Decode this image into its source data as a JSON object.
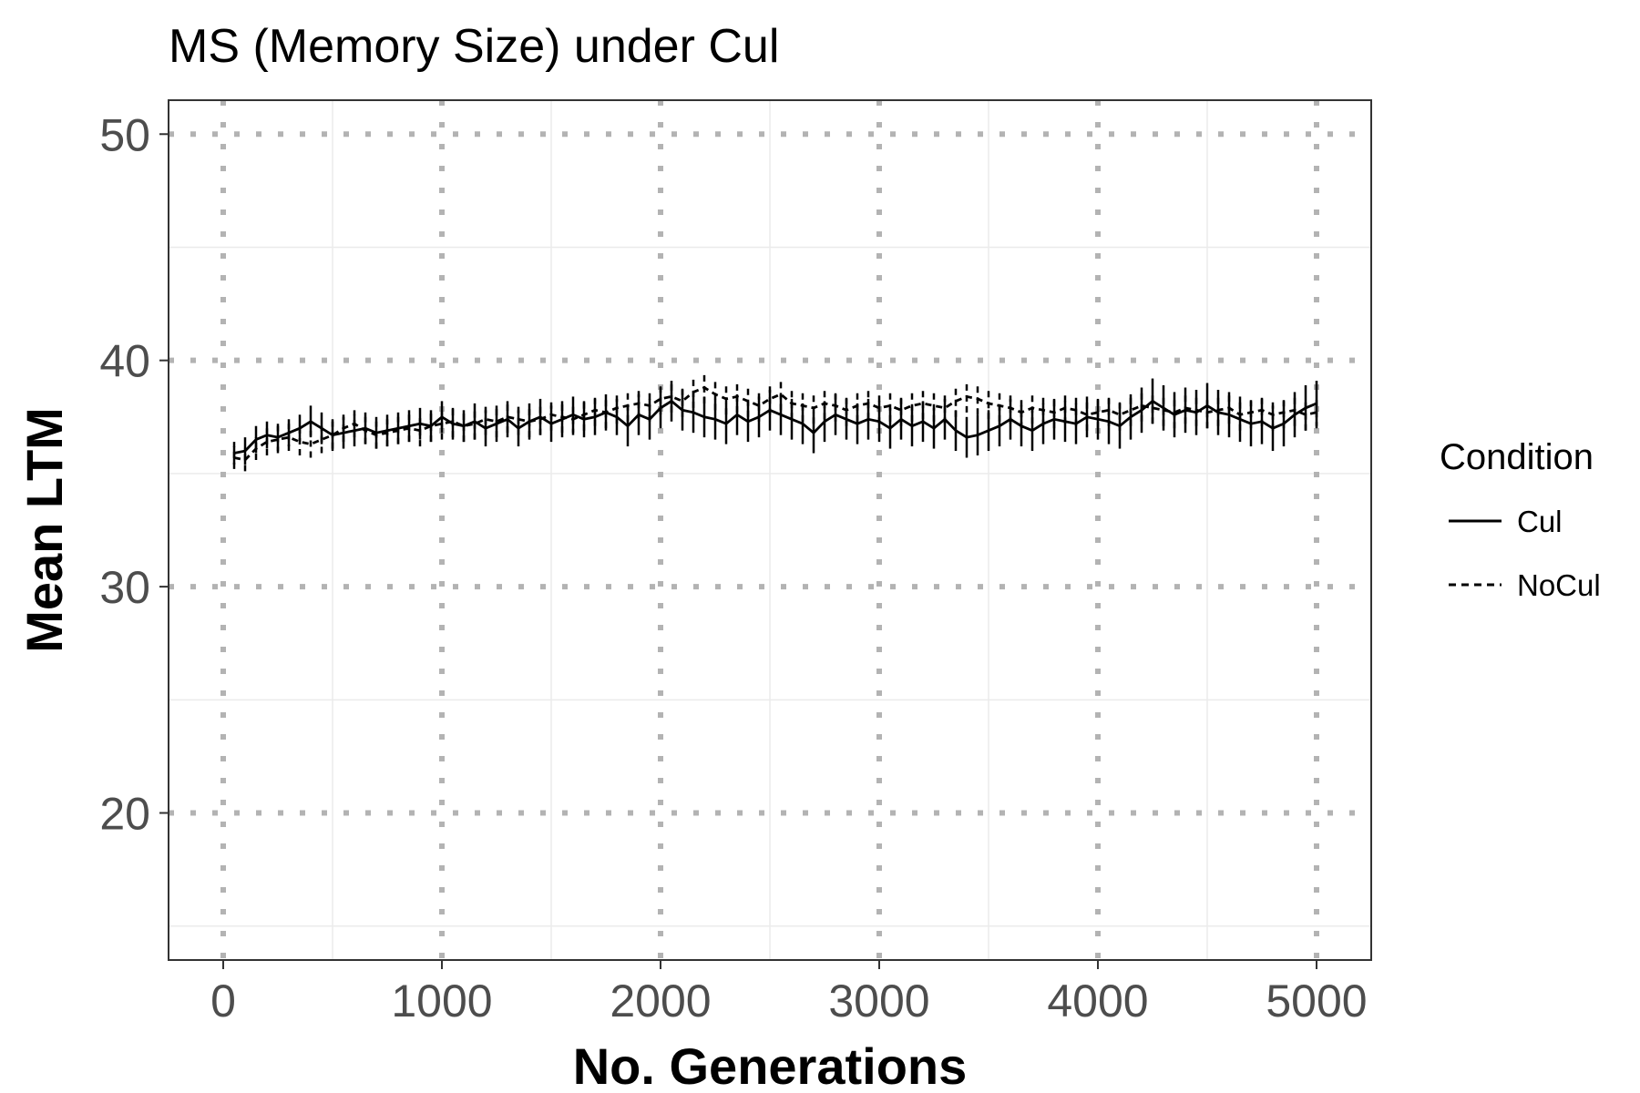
{
  "chart_data": {
    "type": "line",
    "title": "MS (Memory Size) under Cul",
    "xlabel": "No. Generations",
    "ylabel": "Mean LTM",
    "xlim": [
      -250,
      5250
    ],
    "ylim": [
      13.5,
      51.5
    ],
    "x_ticks": [
      0,
      1000,
      2000,
      3000,
      4000,
      5000
    ],
    "y_ticks": [
      20,
      30,
      40,
      50
    ],
    "grid": true,
    "legend": {
      "title": "Condition",
      "placement": "right"
    },
    "x": [
      50,
      100,
      150,
      200,
      250,
      300,
      350,
      400,
      450,
      500,
      550,
      600,
      650,
      700,
      750,
      800,
      850,
      900,
      950,
      1000,
      1050,
      1100,
      1150,
      1200,
      1250,
      1300,
      1350,
      1400,
      1450,
      1500,
      1550,
      1600,
      1650,
      1700,
      1750,
      1800,
      1850,
      1900,
      1950,
      2000,
      2050,
      2100,
      2150,
      2200,
      2250,
      2300,
      2350,
      2400,
      2450,
      2500,
      2550,
      2600,
      2650,
      2700,
      2750,
      2800,
      2850,
      2900,
      2950,
      3000,
      3050,
      3100,
      3150,
      3200,
      3250,
      3300,
      3350,
      3400,
      3450,
      3500,
      3550,
      3600,
      3650,
      3700,
      3750,
      3800,
      3850,
      3900,
      3950,
      4000,
      4050,
      4100,
      4150,
      4200,
      4250,
      4300,
      4350,
      4400,
      4450,
      4500,
      4550,
      4600,
      4650,
      4700,
      4750,
      4800,
      4850,
      4900,
      4950,
      5000
    ],
    "series": [
      {
        "name": "Cul",
        "line_style": "solid",
        "values": [
          35.9,
          36.0,
          36.5,
          36.7,
          36.6,
          36.8,
          37.0,
          37.3,
          37.0,
          36.7,
          36.8,
          36.9,
          37.0,
          36.8,
          36.9,
          37.0,
          37.1,
          37.2,
          37.1,
          37.5,
          37.2,
          37.1,
          37.3,
          37.0,
          37.2,
          37.4,
          37.0,
          37.3,
          37.5,
          37.2,
          37.4,
          37.6,
          37.4,
          37.5,
          37.7,
          37.5,
          37.1,
          37.6,
          37.4,
          37.9,
          38.2,
          37.8,
          37.7,
          37.5,
          37.4,
          37.2,
          37.6,
          37.3,
          37.5,
          37.8,
          37.6,
          37.4,
          37.2,
          36.8,
          37.3,
          37.6,
          37.4,
          37.2,
          37.4,
          37.3,
          37.0,
          37.4,
          37.1,
          37.3,
          37.0,
          37.4,
          36.9,
          36.6,
          36.7,
          36.9,
          37.1,
          37.4,
          37.1,
          36.9,
          37.2,
          37.4,
          37.3,
          37.2,
          37.5,
          37.4,
          37.3,
          37.1,
          37.5,
          37.8,
          38.2,
          37.9,
          37.6,
          37.8,
          37.7,
          38.0,
          37.7,
          37.6,
          37.4,
          37.2,
          37.3,
          37.0,
          37.2,
          37.6,
          37.9,
          38.1
        ],
        "error": [
          0.5,
          0.6,
          0.6,
          0.6,
          0.6,
          0.6,
          0.6,
          0.7,
          0.7,
          0.7,
          0.7,
          0.7,
          0.7,
          0.7,
          0.7,
          0.7,
          0.7,
          0.7,
          0.7,
          0.7,
          0.7,
          0.7,
          0.8,
          0.8,
          0.8,
          0.8,
          0.8,
          0.8,
          0.8,
          0.8,
          0.8,
          0.8,
          0.8,
          0.8,
          0.8,
          0.8,
          0.9,
          0.9,
          0.9,
          0.9,
          0.9,
          0.9,
          0.9,
          0.9,
          0.9,
          0.9,
          0.9,
          0.9,
          0.9,
          0.9,
          0.9,
          0.9,
          0.9,
          0.9,
          0.9,
          0.9,
          0.9,
          0.9,
          0.9,
          0.9,
          0.9,
          0.9,
          0.9,
          0.9,
          0.9,
          0.9,
          0.9,
          0.9,
          0.9,
          0.9,
          0.9,
          0.9,
          0.9,
          0.9,
          0.9,
          0.9,
          0.9,
          0.9,
          0.9,
          0.9,
          1.0,
          1.0,
          1.0,
          1.0,
          1.0,
          1.0,
          1.0,
          1.0,
          1.0,
          1.0,
          1.0,
          1.0,
          1.0,
          1.0,
          1.0,
          1.0,
          1.0,
          1.0,
          1.0,
          1.0
        ]
      },
      {
        "name": "NoCul",
        "line_style": "dashed",
        "values": [
          35.7,
          35.6,
          36.1,
          36.4,
          36.5,
          36.6,
          36.4,
          36.3,
          36.5,
          36.7,
          37.0,
          37.2,
          36.9,
          36.7,
          36.8,
          36.9,
          37.0,
          36.9,
          37.1,
          37.2,
          37.3,
          37.1,
          37.2,
          37.4,
          37.3,
          37.5,
          37.4,
          37.3,
          37.4,
          37.6,
          37.5,
          37.4,
          37.6,
          37.8,
          37.7,
          37.9,
          38.0,
          38.1,
          38.0,
          38.3,
          38.4,
          38.2,
          38.6,
          38.8,
          38.5,
          38.3,
          38.4,
          38.2,
          38.0,
          38.3,
          38.5,
          38.1,
          38.0,
          37.9,
          38.1,
          38.0,
          37.8,
          38.0,
          38.1,
          37.9,
          38.0,
          37.8,
          38.0,
          38.1,
          38.0,
          37.9,
          38.2,
          38.4,
          38.3,
          38.1,
          38.0,
          37.9,
          37.7,
          37.9,
          37.8,
          37.7,
          37.9,
          37.8,
          37.6,
          37.7,
          37.8,
          37.6,
          37.8,
          38.0,
          37.9,
          37.8,
          37.7,
          37.9,
          37.8,
          37.7,
          37.8,
          37.9,
          37.6,
          37.7,
          37.8,
          37.6,
          37.7,
          37.8,
          37.6,
          37.7
        ],
        "error": [
          0.5,
          0.5,
          0.5,
          0.6,
          0.6,
          0.6,
          0.6,
          0.6,
          0.6,
          0.6,
          0.6,
          0.6,
          0.6,
          0.6,
          0.6,
          0.6,
          0.6,
          0.7,
          0.7,
          0.7,
          0.7,
          0.7,
          0.7,
          0.7,
          0.7,
          0.7,
          0.7,
          0.7,
          0.7,
          0.7,
          0.7,
          0.7,
          0.7,
          0.7,
          0.7,
          0.7,
          0.7,
          0.7,
          0.7,
          0.7,
          0.7,
          0.7,
          0.7,
          0.7,
          0.7,
          0.7,
          0.7,
          0.7,
          0.7,
          0.7,
          0.7,
          0.7,
          0.7,
          0.7,
          0.7,
          0.7,
          0.7,
          0.7,
          0.7,
          0.7,
          0.7,
          0.7,
          0.7,
          0.7,
          0.7,
          0.7,
          0.7,
          0.7,
          0.7,
          0.7,
          0.7,
          0.7,
          0.7,
          0.7,
          0.7,
          0.7,
          0.7,
          0.7,
          0.7,
          0.7,
          0.7,
          0.7,
          0.7,
          0.7,
          0.7,
          0.7,
          0.7,
          0.7,
          0.7,
          0.7,
          0.7,
          0.7,
          0.7,
          0.7,
          0.7,
          0.7,
          0.7,
          0.7,
          0.7,
          0.7
        ]
      }
    ]
  }
}
